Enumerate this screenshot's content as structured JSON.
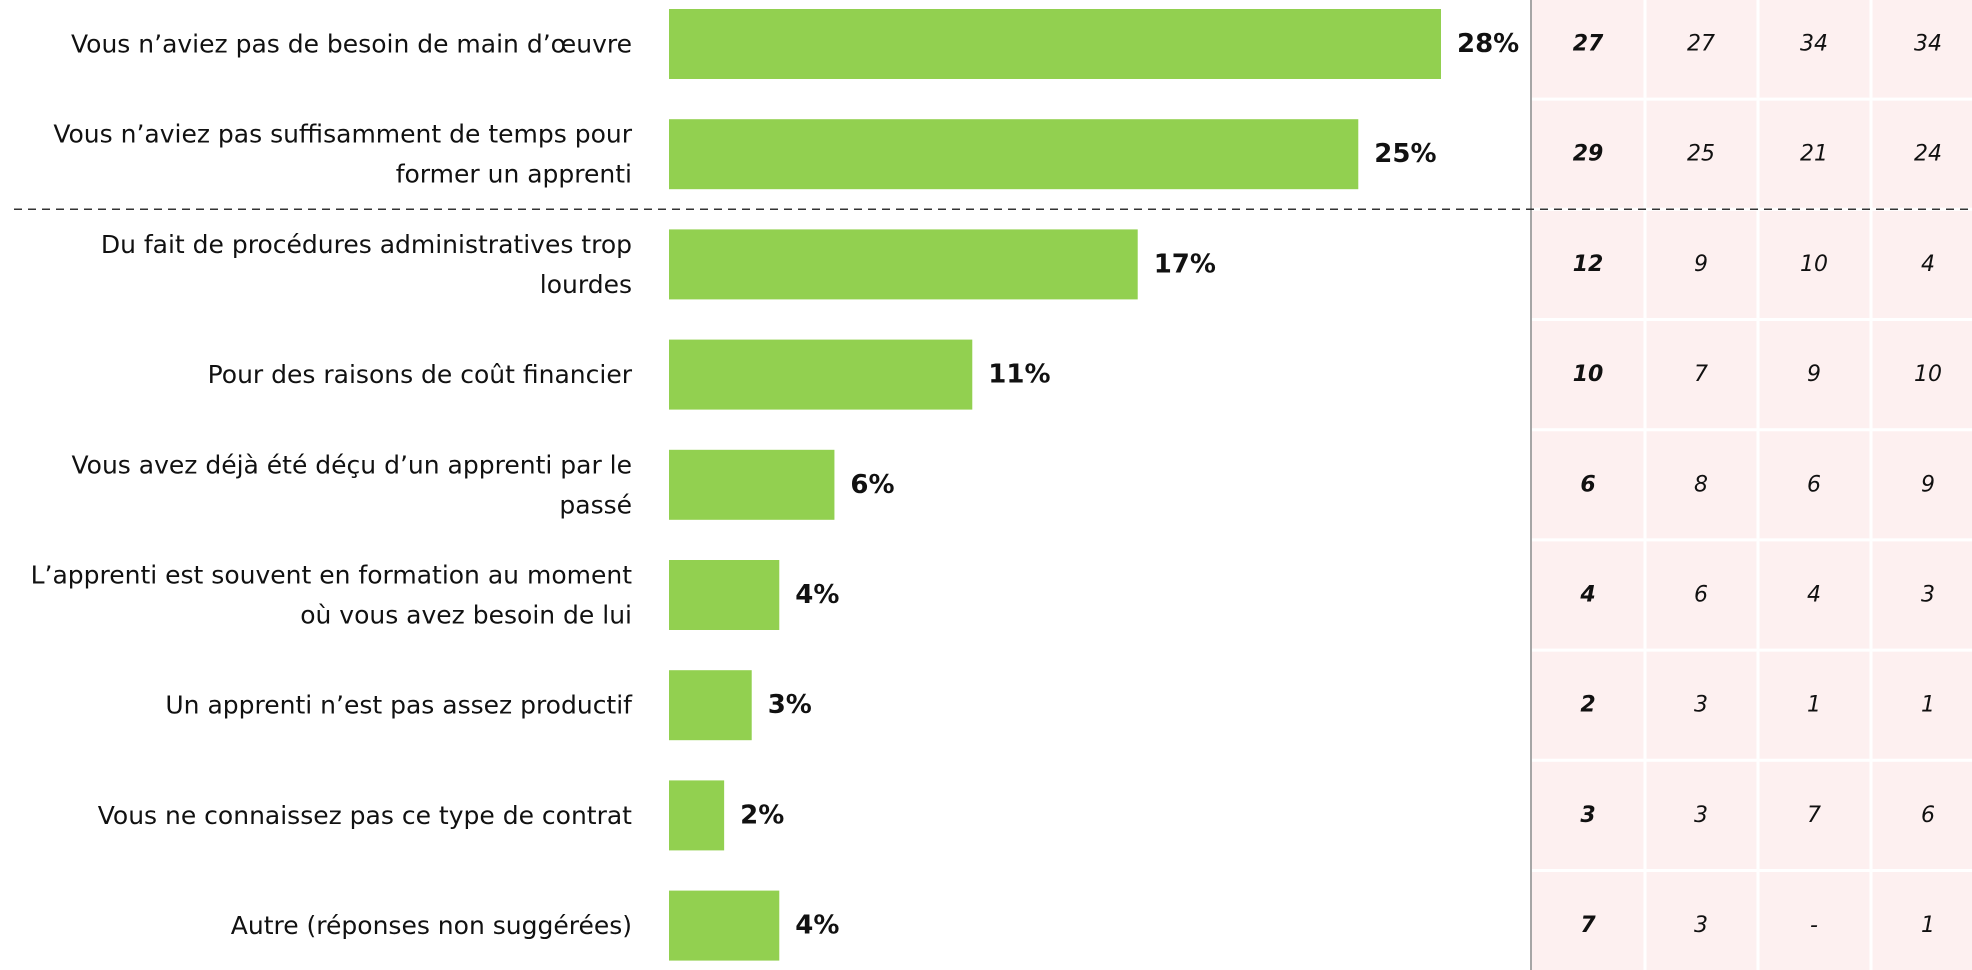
{
  "chart_data": {
    "type": "bar",
    "orientation": "horizontal",
    "categories": [
      "Vous n’aviez pas de besoin de main d’œuvre",
      "Vous n’aviez pas suffisamment de temps pour former un apprenti",
      "Du fait de procédures administratives trop lourdes",
      "Pour des raisons de coût financier",
      "Vous avez déjà été déçu d’un apprenti par le passé",
      "L’apprenti est souvent en formation au moment où vous avez besoin de lui",
      "Un apprenti n’est pas assez productif",
      "Vous ne connaissez pas ce type de contrat",
      "Autre (réponses non suggérées)"
    ],
    "category_lines": [
      [
        "Vous n’aviez pas de besoin de main d’œuvre"
      ],
      [
        "Vous n’aviez pas suffisamment de temps pour",
        "former un apprenti"
      ],
      [
        "Du fait de procédures administratives trop",
        "lourdes"
      ],
      [
        "Pour des raisons de coût financier"
      ],
      [
        "Vous avez déjà été déçu d’un apprenti par le",
        "passé"
      ],
      [
        "L’apprenti est souvent en formation au moment",
        "où vous avez besoin de lui"
      ],
      [
        "Un apprenti n’est pas assez productif"
      ],
      [
        "Vous ne connaissez pas ce type de contrat"
      ],
      [
        "Autre (réponses non suggérées)"
      ]
    ],
    "values": [
      28,
      25,
      17,
      11,
      6,
      4,
      3,
      2,
      4
    ],
    "value_labels": [
      "28%",
      "25%",
      "17%",
      "11%",
      "6%",
      "4%",
      "3%",
      "2%",
      "4%"
    ],
    "unit": "%",
    "xlim": [
      0,
      28
    ],
    "bar_color": "#92d050",
    "divider_after_index": 1,
    "comparison_table": {
      "rows": [
        [
          "27",
          "27",
          "34",
          "34"
        ],
        [
          "29",
          "25",
          "21",
          "24"
        ],
        [
          "12",
          "9",
          "10",
          "4"
        ],
        [
          "10",
          "7",
          "9",
          "10"
        ],
        [
          "6",
          "8",
          "6",
          "9"
        ],
        [
          "4",
          "6",
          "4",
          "3"
        ],
        [
          "2",
          "3",
          "1",
          "1"
        ],
        [
          "3",
          "3",
          "7",
          "6"
        ],
        [
          "7",
          "3",
          "-",
          "1"
        ]
      ],
      "bold_first_column": true,
      "background": "#fdf0f0",
      "cell_border_color": "#ffffff",
      "edge_line_color": "#a6a6a6"
    },
    "title": "",
    "xlabel": "",
    "ylabel": "",
    "grid": false,
    "legend": "none"
  }
}
